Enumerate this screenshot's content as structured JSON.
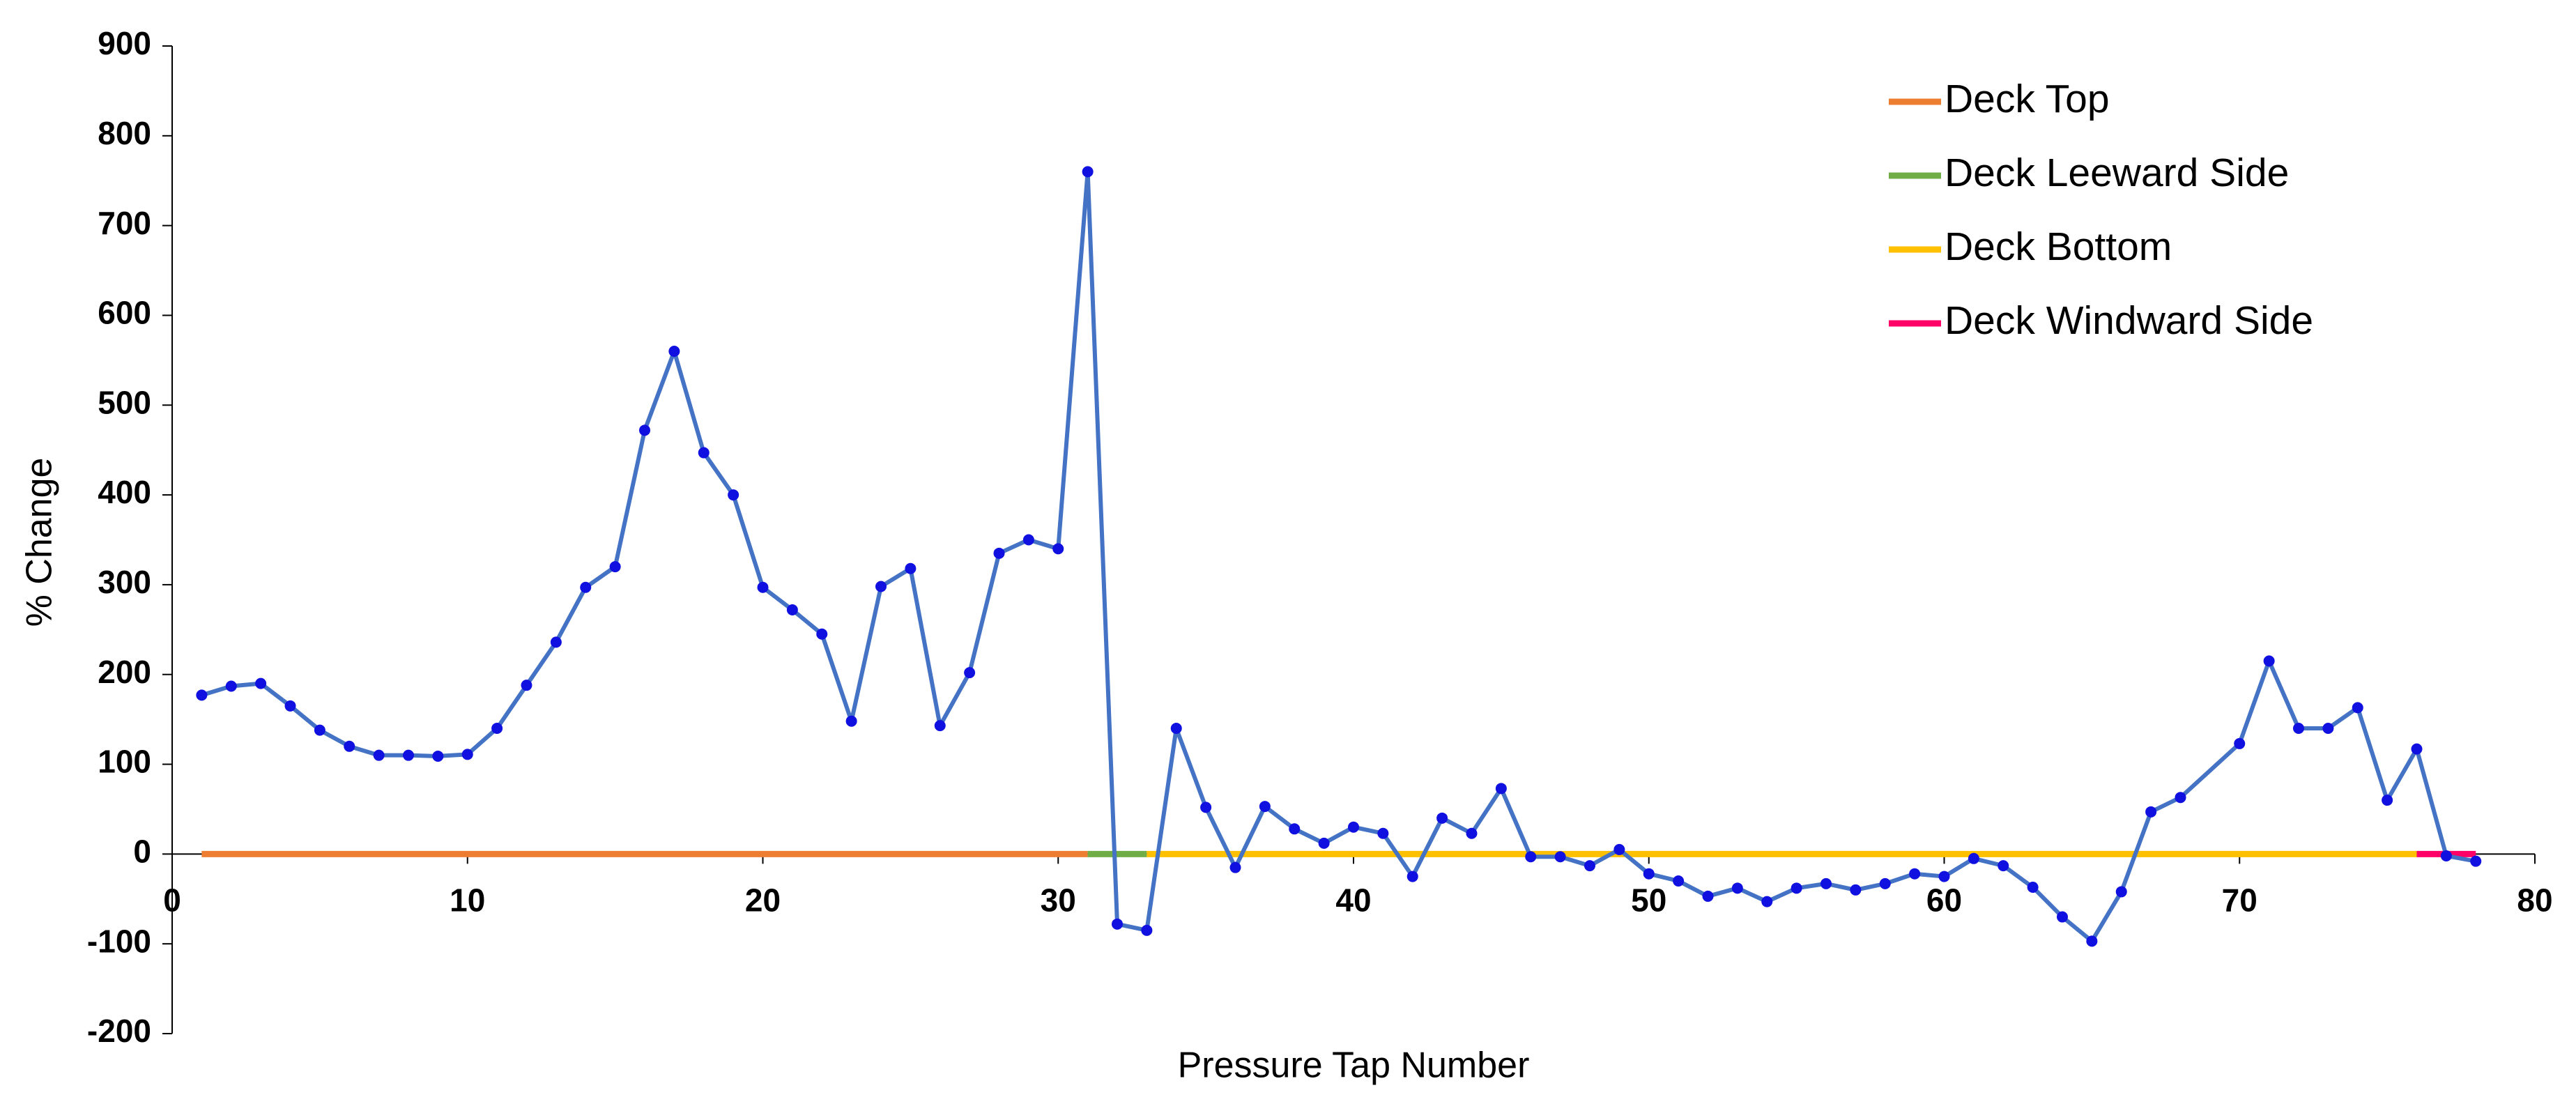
{
  "chart_data": {
    "type": "line",
    "x_label": "Pressure Tap Number",
    "y_label": "% Change",
    "color": "#4472c4",
    "marker_color": "#1010e0",
    "x": [
      1,
      2,
      3,
      4,
      5,
      6,
      7,
      8,
      9,
      10,
      11,
      12,
      13,
      14,
      15,
      16,
      17,
      18,
      19,
      20,
      21,
      22,
      23,
      24,
      25,
      26,
      27,
      28,
      29,
      30,
      31,
      32,
      33,
      34,
      35,
      36,
      37,
      38,
      39,
      40,
      41,
      42,
      43,
      44,
      45,
      46,
      47,
      48,
      49,
      50,
      51,
      52,
      53,
      54,
      55,
      56,
      57,
      58,
      59,
      60,
      61,
      62,
      63,
      64,
      65,
      66,
      67,
      68,
      70,
      71,
      72,
      73,
      74,
      75,
      76,
      77,
      78
    ],
    "values": [
      177,
      187,
      190,
      165,
      138,
      120,
      110,
      110,
      109,
      111,
      140,
      188,
      236,
      297,
      320,
      472,
      560,
      447,
      400,
      297,
      272,
      245,
      148,
      298,
      318,
      143,
      202,
      335,
      350,
      340,
      760,
      -78,
      -85,
      140,
      52,
      -15,
      53,
      28,
      12,
      30,
      23,
      -25,
      40,
      23,
      73,
      -3,
      -3,
      -13,
      5,
      -22,
      -30,
      -47,
      -38,
      -53,
      -38,
      -33,
      -40,
      -33,
      -22,
      -25,
      -5,
      -13,
      -37,
      -70,
      -97,
      -42,
      47,
      63,
      123,
      215,
      140,
      140,
      163,
      60,
      117,
      -2,
      -8
    ],
    "series": [
      {
        "name": "Deck Top",
        "color": "#ed7d31",
        "x": [
          1,
          31
        ],
        "values": [
          0,
          0
        ]
      },
      {
        "name": "Deck Leeward Side",
        "color": "#70ad47",
        "x": [
          31,
          33
        ],
        "values": [
          0,
          0
        ]
      },
      {
        "name": "Deck Bottom",
        "color": "#ffc000",
        "x": [
          33,
          76
        ],
        "values": [
          0,
          0
        ]
      },
      {
        "name": "Deck Windward Side",
        "color": "#ff0066",
        "x": [
          76,
          78
        ],
        "values": [
          0,
          0
        ]
      }
    ],
    "xlim": [
      0,
      80
    ],
    "xticks": [
      0,
      10,
      20,
      30,
      40,
      50,
      60,
      70,
      80
    ],
    "ylim": [
      -200,
      900
    ],
    "yticks": [
      -200,
      -100,
      0,
      100,
      200,
      300,
      400,
      500,
      600,
      700,
      800,
      900
    ],
    "grid": false,
    "legend": "upper right"
  }
}
